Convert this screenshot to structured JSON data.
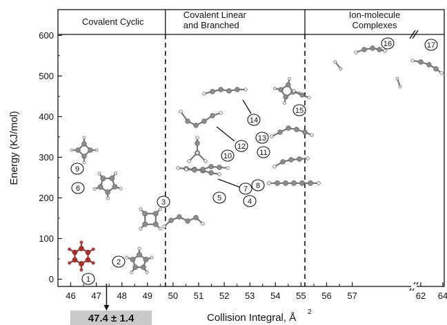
{
  "chart_data": {
    "type": "scatter",
    "xlabel": "Collision Integral, Å",
    "xlabel_superscript": "2",
    "ylabel": "Energy (KJ/mol)",
    "ylim": [
      -20,
      655
    ],
    "x_ticks_left": [
      "46",
      "47",
      "48",
      "49",
      "50",
      "51",
      "52",
      "53",
      "54",
      "55",
      "56",
      "57"
    ],
    "x_ticks_right": [
      "62",
      "64"
    ],
    "y_ticks": [
      "0",
      "100",
      "200",
      "300",
      "400",
      "500",
      "600"
    ],
    "axis_break": "between 57 and 62",
    "regions": [
      {
        "label_lines": [
          "Covalent Cyclic"
        ],
        "x_start": 45.6,
        "x_end": 49.7
      },
      {
        "label_lines": [
          "Covalent Linear",
          "and Branched"
        ],
        "x_start": 49.7,
        "x_end": 55.15
      },
      {
        "label_lines": [
          "Ion-molecule",
          "Complexes"
        ],
        "x_start": 55.15,
        "x_end": 64.5
      }
    ],
    "structures": [
      {
        "id": "1",
        "x": 46.6,
        "energy": 0
      },
      {
        "id": "2",
        "x": 48.3,
        "energy": 40
      },
      {
        "id": "3",
        "x": 49.1,
        "energy": 160
      },
      {
        "id": "4",
        "x": 51.9,
        "energy": 240
      },
      {
        "id": "5",
        "x": 51.5,
        "energy": 160
      },
      {
        "id": "6",
        "x": 47.3,
        "energy": 225
      },
      {
        "id": "7",
        "x": 51.9,
        "energy": 255
      },
      {
        "id": "8",
        "x": 54.0,
        "energy": 235
      },
      {
        "id": "9",
        "x": 46.5,
        "energy": 310
      },
      {
        "id": "10",
        "x": 50.5,
        "energy": 310
      },
      {
        "id": "11",
        "x": 53.8,
        "energy": 290
      },
      {
        "id": "12",
        "x": 51.0,
        "energy": 370
      },
      {
        "id": "13",
        "x": 54.0,
        "energy": 360
      },
      {
        "id": "14",
        "x": 51.5,
        "energy": 460
      },
      {
        "id": "15",
        "x": 53.7,
        "energy": 450
      },
      {
        "id": "16",
        "x": 56.2,
        "energy": 560
      },
      {
        "id": "17",
        "x": 62.7,
        "energy": 540
      }
    ],
    "measured_result": "47.4 ± 1.4",
    "measured_x": 47.4,
    "highlight_color": "#b22a22"
  }
}
